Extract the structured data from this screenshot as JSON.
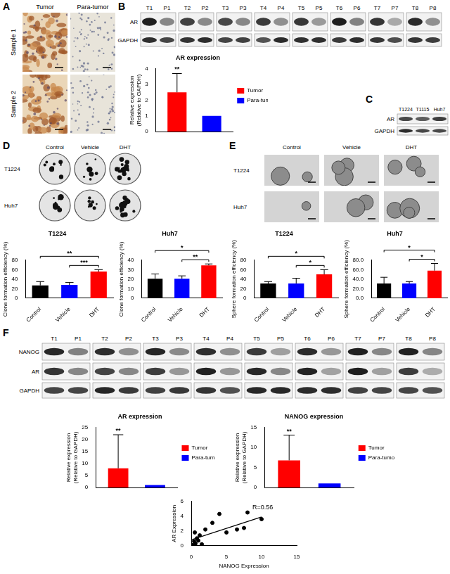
{
  "panels": {
    "A": {
      "letter": "A",
      "columns": [
        "Tumor",
        "Para-tumor"
      ],
      "rows": [
        "Sample 1",
        "Sample 2"
      ]
    },
    "B_blot": {
      "letter": "B",
      "lanes": [
        "T1",
        "P1",
        "T2",
        "P2",
        "T3",
        "P3",
        "T4",
        "P4",
        "T5",
        "P5",
        "T6",
        "P6",
        "T7",
        "P7",
        "T8",
        "P8"
      ],
      "rows": [
        "AR",
        "GAPDH"
      ]
    },
    "C_blot": {
      "letter": "C",
      "lanes": [
        "T1224",
        "T1115",
        "Huh7"
      ],
      "rows": [
        "AR",
        "GAPDH"
      ]
    },
    "D_images": {
      "letter": "D",
      "columns": [
        "Control",
        "Vehicle",
        "DHT"
      ],
      "rows": [
        "T1224",
        "Huh7"
      ]
    },
    "E_images": {
      "letter": "E",
      "columns": [
        "Control",
        "Vehicle",
        "DHT"
      ],
      "rows": [
        "T1224",
        "Huh7"
      ]
    },
    "F_blot": {
      "letter": "F",
      "lanes": [
        "T1",
        "P1",
        "T2",
        "P2",
        "T3",
        "P3",
        "T4",
        "P4",
        "T5",
        "P5",
        "T6",
        "P6",
        "T7",
        "P7",
        "T8",
        "P8"
      ],
      "rows": [
        "NANOG",
        "AR",
        "GAPDH"
      ]
    }
  },
  "chart_data": [
    {
      "type": "bar",
      "title": "AR expression",
      "y_label": [
        "Relative expression",
        "(Relative to GAPDH)"
      ],
      "categories": [
        null
      ],
      "series": [
        {
          "name": "Tumor",
          "color": "#ff0000",
          "values": [
            2.5
          ],
          "errors": [
            1.2
          ]
        },
        {
          "name": "Para-tumor",
          "color": "#0000ff",
          "values": [
            1.0
          ]
        }
      ],
      "annotations": [
        {
          "series": "Tumor",
          "text": "**"
        }
      ],
      "ylim": [
        0,
        4
      ],
      "yticks": [
        0,
        1,
        2,
        3,
        4
      ],
      "grid": false,
      "legend": "right",
      "tick_labels": "y"
    },
    {
      "type": "bar",
      "title": "T1224",
      "y_label": "Clone formation efficiency (%)",
      "categories": [
        "Control",
        "Vehicle",
        "DHT"
      ],
      "values": [
        27,
        28,
        56
      ],
      "errors": [
        8,
        5,
        4
      ],
      "colors": [
        "#000000",
        "#0000ff",
        "#ff0000"
      ],
      "significance": [
        {
          "from": "Control",
          "to": "DHT",
          "label": "**"
        },
        {
          "from": "Vehicle",
          "to": "DHT",
          "label": "***"
        }
      ],
      "ylim": [
        0,
        80
      ],
      "yticks": [
        0,
        20,
        40,
        60,
        80
      ],
      "grid": false
    },
    {
      "type": "bar",
      "title": "Huh7",
      "y_label": "Clone formation efficiency (%)",
      "categories": [
        "Control",
        "Vehicle",
        "DHT"
      ],
      "values": [
        20.5,
        20.5,
        34.5
      ],
      "errors": [
        5,
        3,
        1.5
      ],
      "colors": [
        "#000000",
        "#0000ff",
        "#ff0000"
      ],
      "significance": [
        {
          "from": "Control",
          "to": "DHT",
          "label": "*"
        },
        {
          "from": "Vehicle",
          "to": "DHT",
          "label": "**"
        }
      ],
      "ylim": [
        0,
        40
      ],
      "yticks": [
        0,
        10,
        20,
        30,
        40
      ],
      "grid": false
    },
    {
      "type": "bar",
      "title": "T1224",
      "y_label": "Sphere formation efficiency (%)",
      "categories": [
        "Control",
        "Vehicle",
        "DHT"
      ],
      "values": [
        31,
        31,
        50
      ],
      "errors": [
        4,
        11,
        10
      ],
      "colors": [
        "#000000",
        "#0000ff",
        "#ff0000"
      ],
      "significance": [
        {
          "from": "Control",
          "to": "DHT",
          "label": "*"
        },
        {
          "from": "Vehicle",
          "to": "DHT",
          "label": "*"
        }
      ],
      "ylim": [
        0,
        80
      ],
      "yticks": [
        0,
        20,
        40,
        60,
        80
      ],
      "grid": false
    },
    {
      "type": "bar",
      "title": "Huh7",
      "y_label": "Sphere formation efficiency (%)",
      "categories": [
        "Control",
        "Vehicle",
        "DHT"
      ],
      "values": [
        31,
        31,
        58
      ],
      "errors": [
        13,
        4,
        15
      ],
      "colors": [
        "#000000",
        "#0000ff",
        "#ff0000"
      ],
      "significance": [
        {
          "from": "Control",
          "to": "DHT",
          "label": "*"
        },
        {
          "from": "Vehicle",
          "to": "DHT",
          "label": "*"
        }
      ],
      "ylim": [
        0,
        80
      ],
      "yticks": [
        {
          "value": 0,
          "label": "0.0"
        },
        {
          "value": 20,
          "label": "20.0"
        },
        {
          "value": 40,
          "label": "40.0"
        },
        {
          "value": 60,
          "label": "60.0"
        },
        {
          "value": 80,
          "label": "80.0"
        }
      ],
      "grid": false
    },
    {
      "type": "bar",
      "title": "AR expression",
      "y_label": [
        "Relative expression",
        "(Relative to GAPDH)"
      ],
      "categories": [
        null
      ],
      "series": [
        {
          "name": "Tumor",
          "color": "#ff0000",
          "values": [
            8
          ],
          "errors": [
            14
          ]
        },
        {
          "name": "Para-tumor",
          "color": "#0000ff",
          "values": [
            1
          ]
        }
      ],
      "annotations": [
        {
          "series": "Tumor",
          "text": "**"
        }
      ],
      "ylim": [
        0,
        25
      ],
      "yticks": [
        0,
        5,
        10,
        15,
        20,
        25
      ],
      "grid": false,
      "legend": "right",
      "tick_labels": "y"
    },
    {
      "type": "bar",
      "title": "NANOG expression",
      "y_label": [
        "Relative expression",
        "(Relative to GAPDH)"
      ],
      "categories": [
        null
      ],
      "series": [
        {
          "name": "Tumor",
          "color": "#ff0000",
          "values": [
            6.8
          ],
          "errors": [
            6.3
          ]
        },
        {
          "name": "Para-tumor",
          "color": "#0000ff",
          "values": [
            1
          ]
        }
      ],
      "annotations": [
        {
          "series": "Tumor",
          "text": "**"
        }
      ],
      "ylim": [
        0,
        15
      ],
      "yticks": [
        0,
        5,
        10,
        15
      ],
      "grid": false,
      "legend": "right",
      "tick_labels": "y"
    },
    {
      "type": "scatter",
      "x_label": "NANOG Expression",
      "y_label": "AR Expression",
      "x": [
        0.2,
        0.4,
        0.6,
        0.8,
        1.0,
        1.2,
        0.5,
        1.5,
        2.0,
        3.0,
        4.0,
        5.0,
        6.5,
        7.5,
        8.0,
        10.0
      ],
      "values": [
        0.1,
        0.6,
        0.3,
        1.0,
        0.7,
        1.4,
        1.8,
        0.2,
        2.2,
        3.1,
        4.3,
        1.8,
        2.2,
        2.4,
        4.5,
        3.6
      ],
      "fit_line": {
        "x": [
          0,
          10
        ],
        "values": [
          0.8,
          3.9
        ]
      },
      "annotation": "R=0.56",
      "color": "#000000",
      "xlim": [
        0,
        15
      ],
      "xticks": [
        0,
        5,
        10,
        15
      ],
      "ylim": [
        0,
        6
      ],
      "yticks": [
        0,
        2,
        4,
        6
      ],
      "grid": false
    }
  ]
}
